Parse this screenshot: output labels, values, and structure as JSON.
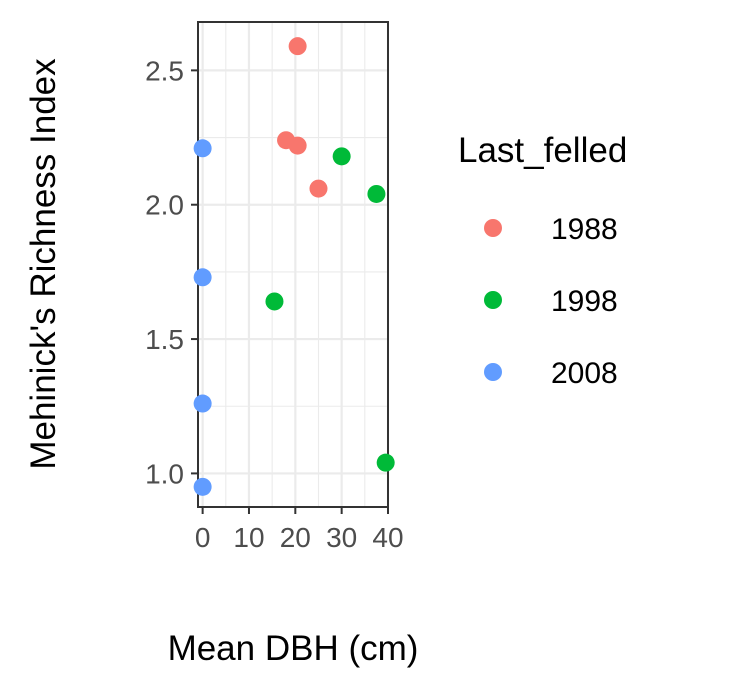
{
  "chart_data": {
    "type": "scatter",
    "title": "",
    "xlabel": "Mean DBH (cm)",
    "ylabel": "Mehinick's Richness Index",
    "xlim": [
      -1,
      40
    ],
    "ylim": [
      0.875,
      2.68
    ],
    "x_ticks": [
      0,
      10,
      20,
      30,
      40
    ],
    "x_tick_labels": [
      "0",
      "10",
      "20",
      "30",
      "40"
    ],
    "y_ticks": [
      1.0,
      1.5,
      2.0,
      2.5
    ],
    "y_tick_labels": [
      "1.0",
      "1.5",
      "2.0",
      "2.5"
    ],
    "grid": true,
    "legend": {
      "title": "Last_felled",
      "position": "right",
      "entries": [
        {
          "label": "1988",
          "color": "#F8766D"
        },
        {
          "label": "1998",
          "color": "#00BA38"
        },
        {
          "label": "2008",
          "color": "#619CFF"
        }
      ]
    },
    "series": [
      {
        "name": "1988",
        "color": "#F8766D",
        "points": [
          [
            20.5,
            2.59
          ],
          [
            18,
            2.24
          ],
          [
            20.5,
            2.22
          ],
          [
            25,
            2.06
          ]
        ]
      },
      {
        "name": "1998",
        "color": "#00BA38",
        "points": [
          [
            30,
            2.18
          ],
          [
            37.5,
            2.04
          ],
          [
            15.5,
            1.64
          ],
          [
            39.5,
            1.04
          ]
        ]
      },
      {
        "name": "2008",
        "color": "#619CFF",
        "points": [
          [
            0,
            2.21
          ],
          [
            0,
            1.73
          ],
          [
            0,
            1.26
          ],
          [
            0,
            0.95
          ]
        ]
      }
    ]
  }
}
